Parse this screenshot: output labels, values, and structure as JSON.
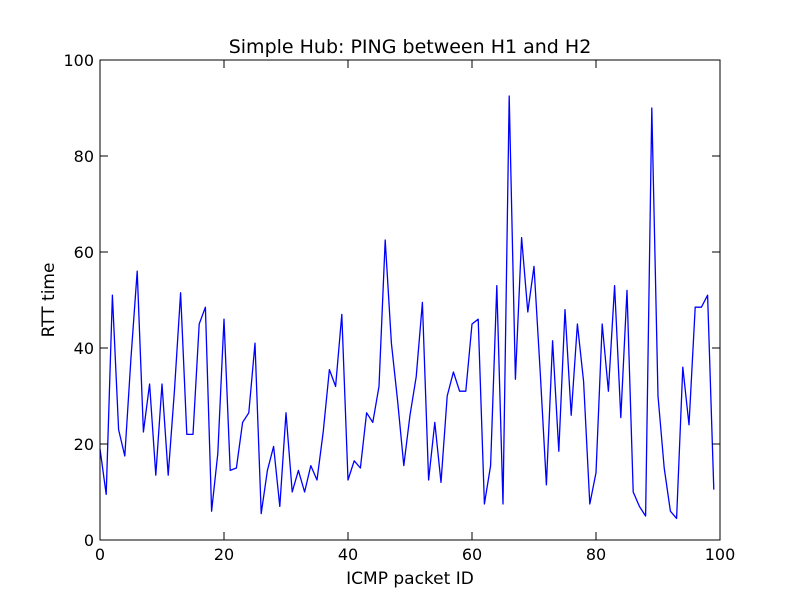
{
  "chart_data": {
    "type": "line",
    "title": "Simple Hub: PING between H1 and H2",
    "xlabel": "ICMP packet ID",
    "ylabel": "RTT time",
    "xlim": [
      0,
      100
    ],
    "ylim": [
      0,
      100
    ],
    "xticks": [
      0,
      20,
      40,
      60,
      80,
      100
    ],
    "yticks": [
      0,
      20,
      40,
      60,
      80,
      100
    ],
    "grid": false,
    "series": [
      {
        "color": "#0000ff",
        "x": [
          0,
          1,
          2,
          3,
          4,
          5,
          6,
          7,
          8,
          9,
          10,
          11,
          12,
          13,
          14,
          15,
          16,
          17,
          18,
          19,
          20,
          21,
          22,
          23,
          24,
          25,
          26,
          27,
          28,
          29,
          30,
          31,
          32,
          33,
          34,
          35,
          36,
          37,
          38,
          39,
          40,
          41,
          42,
          43,
          44,
          45,
          46,
          47,
          48,
          49,
          50,
          51,
          52,
          53,
          54,
          55,
          56,
          57,
          58,
          59,
          60,
          61,
          62,
          63,
          64,
          65,
          66,
          67,
          68,
          69,
          70,
          71,
          72,
          73,
          74,
          75,
          76,
          77,
          78,
          79,
          80,
          81,
          82,
          83,
          84,
          85,
          86,
          87,
          88,
          89,
          90,
          91,
          92,
          93,
          94,
          95,
          96,
          97,
          98,
          99
        ],
        "y": [
          19,
          9.5,
          51,
          23,
          17.5,
          38,
          56,
          22.5,
          32.5,
          13.5,
          32.5,
          13.5,
          31,
          51.5,
          22,
          22,
          45,
          48.5,
          6,
          18,
          46,
          14.5,
          15,
          24.5,
          26.5,
          41,
          5.5,
          14.5,
          19.5,
          7,
          26.5,
          10,
          14.5,
          10,
          15.5,
          12.5,
          22.5,
          35.5,
          32,
          47,
          12.5,
          16.5,
          15,
          26.5,
          24.5,
          32,
          62.5,
          41,
          29,
          15.5,
          26,
          34,
          49.5,
          12.5,
          24.5,
          12,
          30,
          35,
          31,
          31,
          45,
          46,
          7.5,
          15.5,
          53,
          7.5,
          92.5,
          33.5,
          63,
          47.5,
          57,
          35,
          11.5,
          41.5,
          18.5,
          48,
          26,
          45,
          33,
          7.5,
          14,
          45,
          31,
          53,
          25.5,
          52,
          10,
          7,
          5,
          90,
          30,
          15,
          6,
          4.5,
          36,
          24,
          48.5,
          48.5,
          51,
          10.5
        ]
      }
    ]
  }
}
